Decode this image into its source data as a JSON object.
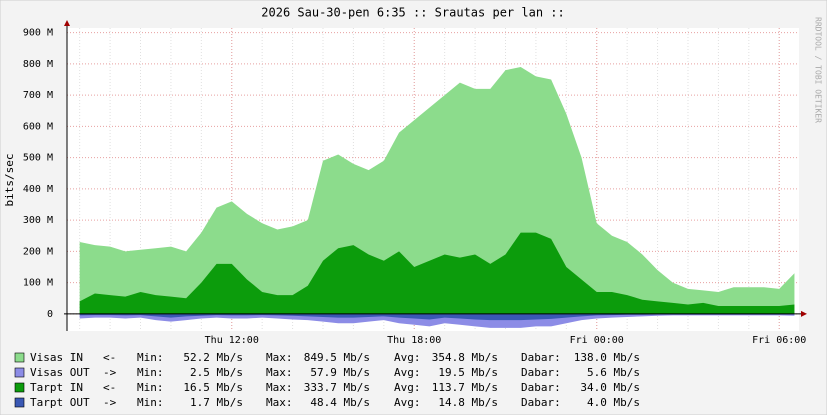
{
  "chart_data": {
    "type": "area",
    "title": "2026 Sau-30-pen 6:35 :: Srautas per lan ::",
    "y_label": "bits/sec",
    "watermark": "RRDTOOL / TOBI OETIKER",
    "xlim": [
      6.583,
      30.65
    ],
    "xticks": [
      {
        "value": 12,
        "label": "Thu 12:00"
      },
      {
        "value": 18,
        "label": "Thu 18:00"
      },
      {
        "value": 24,
        "label": "Fri 00:00"
      },
      {
        "value": 30,
        "label": "Fri 06:00"
      }
    ],
    "ylim": [
      -55,
      915
    ],
    "yticks": [
      0,
      {
        "value": 100,
        "label": "100 M"
      },
      {
        "value": 200,
        "label": "200 M"
      },
      {
        "value": 300,
        "label": "300 M"
      },
      {
        "value": 400,
        "label": "400 M"
      },
      {
        "value": 500,
        "label": "500 M"
      },
      {
        "value": 600,
        "label": "600 M"
      },
      {
        "value": 700,
        "label": "700 M"
      },
      {
        "value": 800,
        "label": "800 M"
      },
      {
        "value": 900,
        "label": "900 M"
      }
    ],
    "grid": true,
    "x": [
      7,
      7.5,
      8,
      8.5,
      9,
      9.5,
      10,
      10.5,
      11,
      11.5,
      12,
      12.5,
      13,
      13.5,
      14,
      14.5,
      15,
      15.5,
      16,
      16.5,
      17,
      17.5,
      18,
      18.5,
      19,
      19.5,
      20,
      20.5,
      21,
      21.5,
      22,
      22.5,
      23,
      23.5,
      24,
      24.5,
      25,
      25.5,
      26,
      26.5,
      27,
      27.5,
      28,
      28.5,
      29,
      29.5,
      30,
      30.5
    ],
    "stat_labels": [
      "Min:",
      "Max:",
      "Avg:",
      "Dabar:"
    ],
    "series": [
      {
        "name": "Visas IN",
        "direction": "<-",
        "color": "#8cdc8c",
        "stats": [
          "52.2 Mb/s",
          "849.5 Mb/s",
          "354.8 Mb/s",
          "138.0 Mb/s"
        ],
        "values": [
          230,
          220,
          215,
          200,
          205,
          210,
          215,
          200,
          260,
          340,
          360,
          320,
          290,
          270,
          280,
          300,
          490,
          510,
          480,
          460,
          490,
          580,
          620,
          660,
          700,
          740,
          720,
          720,
          780,
          790,
          760,
          750,
          640,
          500,
          290,
          250,
          230,
          190,
          140,
          100,
          80,
          75,
          70,
          85,
          85,
          85,
          80,
          130
        ]
      },
      {
        "name": "Visas OUT",
        "direction": "->",
        "color": "#8c8ce6",
        "stats": [
          "2.5 Mb/s",
          "57.9 Mb/s",
          "19.5 Mb/s",
          "5.6 Mb/s"
        ],
        "values": [
          -15,
          -12,
          -12,
          -15,
          -12,
          -20,
          -25,
          -20,
          -15,
          -12,
          -15,
          -15,
          -12,
          -15,
          -18,
          -20,
          -25,
          -30,
          -30,
          -25,
          -20,
          -30,
          -35,
          -40,
          -30,
          -35,
          -40,
          -45,
          -45,
          -45,
          -40,
          -40,
          -30,
          -20,
          -15,
          -12,
          -10,
          -8,
          -6,
          -5,
          -5,
          -5,
          -5,
          -5,
          -5,
          -5,
          -5,
          -6
        ]
      },
      {
        "name": "Tarpt IN",
        "direction": "<-",
        "color": "#0c9c0c",
        "stats": [
          "16.5 Mb/s",
          "333.7 Mb/s",
          "113.7 Mb/s",
          "34.0 Mb/s"
        ],
        "values": [
          40,
          65,
          60,
          55,
          70,
          60,
          55,
          50,
          100,
          160,
          160,
          110,
          70,
          60,
          60,
          90,
          170,
          210,
          220,
          190,
          170,
          200,
          150,
          170,
          190,
          180,
          190,
          160,
          190,
          260,
          260,
          240,
          150,
          110,
          70,
          70,
          60,
          45,
          40,
          35,
          30,
          35,
          25,
          25,
          25,
          25,
          25,
          30
        ]
      },
      {
        "name": "Tarpt OUT",
        "direction": "->",
        "color": "#3a58b4",
        "stats": [
          "1.7 Mb/s",
          "48.4 Mb/s",
          "14.8 Mb/s",
          "4.0 Mb/s"
        ],
        "values": [
          -5,
          -4,
          -4,
          -5,
          -4,
          -8,
          -12,
          -8,
          -6,
          -4,
          -5,
          -5,
          -4,
          -5,
          -6,
          -8,
          -10,
          -12,
          -12,
          -10,
          -8,
          -12,
          -15,
          -18,
          -12,
          -15,
          -18,
          -20,
          -20,
          -20,
          -18,
          -16,
          -12,
          -8,
          -5,
          -4,
          -3,
          -3,
          -2,
          -2,
          -2,
          -2,
          -2,
          -2,
          -2,
          -2,
          -2,
          -2
        ]
      }
    ]
  }
}
